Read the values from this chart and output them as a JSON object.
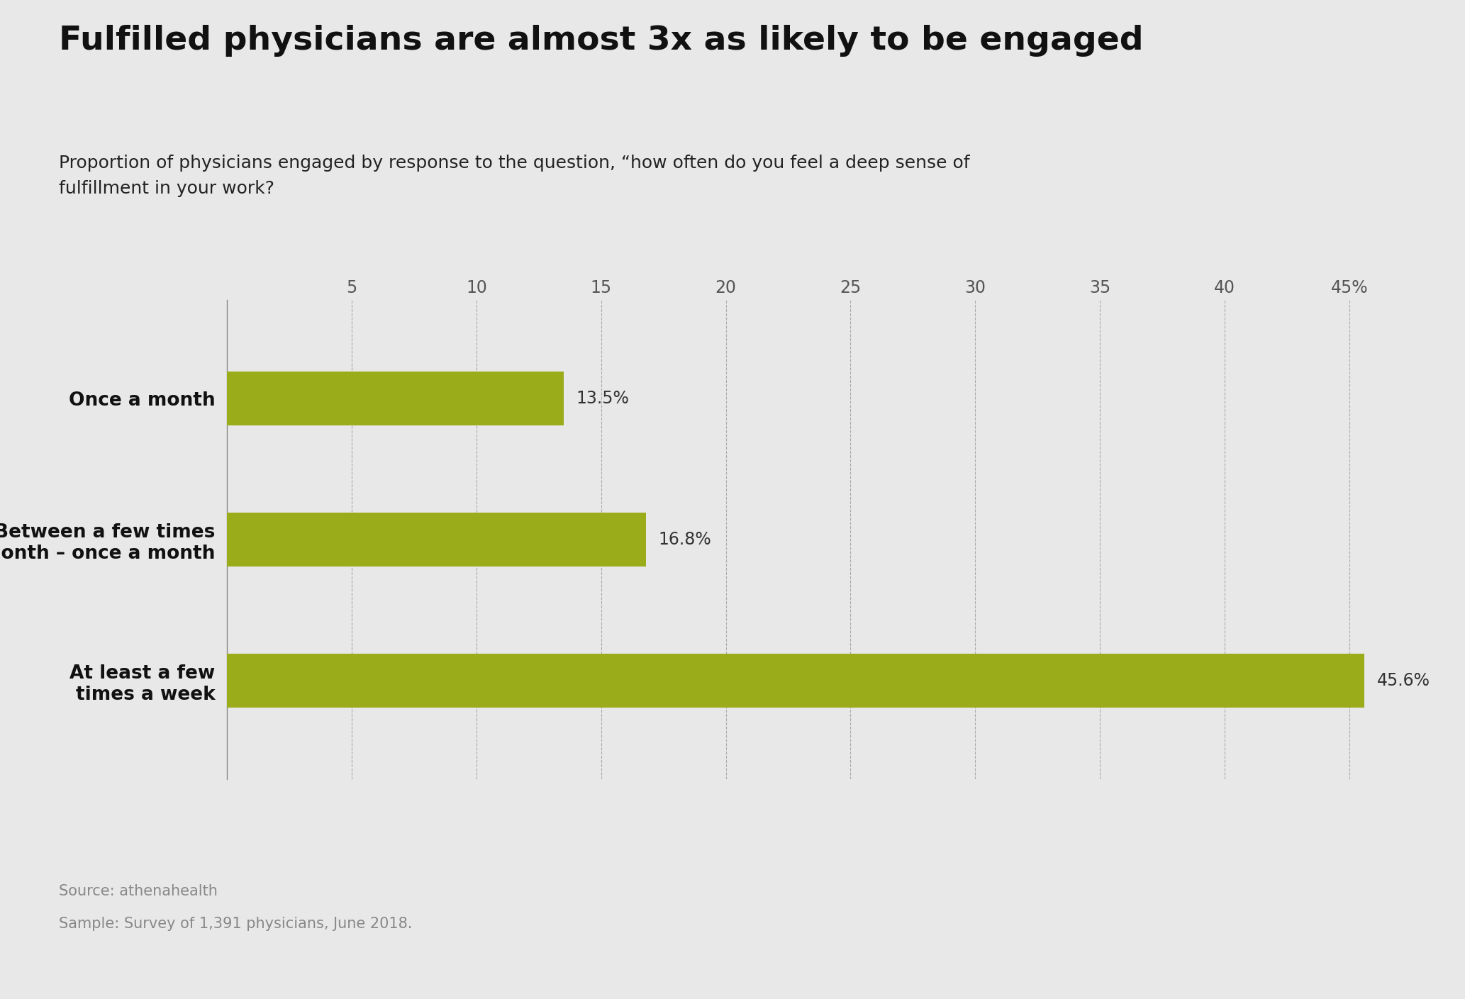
{
  "title": "Fulfilled physicians are almost 3x as likely to be engaged",
  "subtitle": "Proportion of physicians engaged by response to the question, “how often do you feel a deep sense of\nfulfillment in your work?",
  "categories": [
    "Once a month",
    "Between a few times\na month – once a month",
    "At least a few\ntimes a week"
  ],
  "values": [
    13.5,
    16.8,
    45.6
  ],
  "bar_color": "#9aac1a",
  "background_color": "#e8e8e8",
  "xlim": [
    0,
    47
  ],
  "xticks": [
    5,
    10,
    15,
    20,
    25,
    30,
    35,
    40,
    45
  ],
  "xtick_labels": [
    "5",
    "10",
    "15",
    "20",
    "25",
    "30",
    "35",
    "40",
    "45%"
  ],
  "value_labels": [
    "13.5%",
    "16.8%",
    "45.6%"
  ],
  "source_line1": "Source: athenahealth",
  "source_line2": "Sample: Survey of 1,391 physicians, June 2018.",
  "title_fontsize": 34,
  "subtitle_fontsize": 18,
  "label_fontsize": 19,
  "tick_fontsize": 17,
  "value_fontsize": 17,
  "source_fontsize": 15,
  "bar_height": 0.38
}
